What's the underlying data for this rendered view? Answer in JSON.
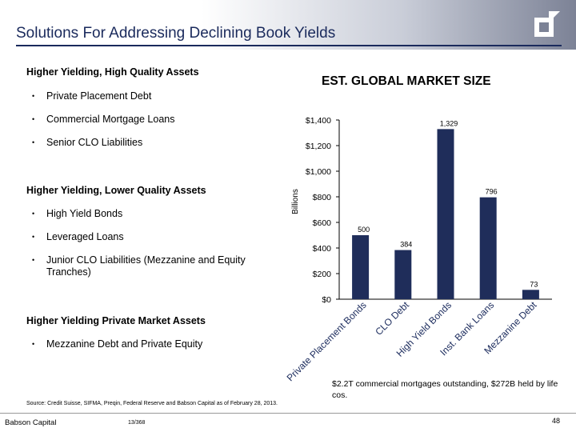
{
  "header": {
    "title": "Solutions For Addressing Declining Book Yields",
    "logo_name": "babson-capital-logo"
  },
  "left": {
    "sections": [
      {
        "heading": "Higher Yielding, High Quality Assets",
        "bullets": [
          "Private Placement Debt",
          "Commercial Mortgage Loans",
          "Senior CLO Liabilities"
        ]
      },
      {
        "heading": "Higher Yielding, Lower Quality Assets",
        "bullets": [
          "High Yield Bonds",
          "Leveraged Loans",
          "Junior CLO Liabilities (Mezzanine and Equity Tranches)"
        ]
      },
      {
        "heading": "Higher Yielding Private Market Assets",
        "bullets": [
          "Mezzanine Debt and Private Equity"
        ]
      }
    ],
    "bullet_char": "•"
  },
  "chart_data": {
    "type": "bar",
    "title": "EST. GLOBAL MARKET SIZE",
    "categories": [
      "Private Placement Bonds",
      "CLO Debt",
      "High Yield Bonds",
      "Inst. Bank Loans",
      "Mezzanine Debt"
    ],
    "values": [
      500,
      384,
      1329,
      796,
      73
    ],
    "data_labels": [
      "500",
      "384",
      "1,329",
      "796",
      "73"
    ],
    "ylabel": "Billions",
    "xlabel": "",
    "ylim": [
      0,
      1400
    ],
    "yticks": [
      0,
      200,
      400,
      600,
      800,
      1000,
      1200,
      1400
    ],
    "ytick_labels": [
      "$0",
      "$200",
      "$400",
      "$600",
      "$800",
      "$1,000",
      "$1,200",
      "$1,400"
    ],
    "grid": false,
    "legend": "none",
    "bar_color": "#1f2d5a"
  },
  "note": "$2.2T commercial mortgages outstanding, $272B held by life cos.",
  "source": "Source: Credit Suisse, SIFMA, Preqin, Federal Reserve and Babson Capital as of February 28, 2013.",
  "footer": {
    "company": "Babson Capital",
    "code": "13/368",
    "page": "48"
  },
  "colors": {
    "navy": "#1a2a5c",
    "bar": "#1f2d5a"
  }
}
